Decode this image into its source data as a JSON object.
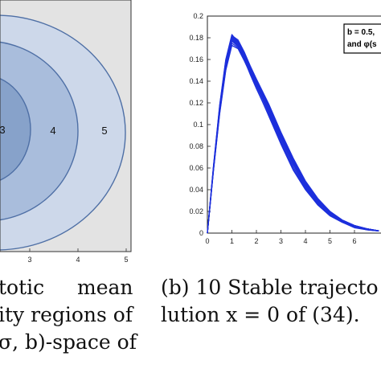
{
  "left_panel": {
    "x_ticks": [
      "3",
      "4",
      "5"
    ],
    "region_labels": [
      "3",
      "4",
      "5"
    ],
    "colors": {
      "background": "#e3e3e3",
      "region_5": "#cdd8ea",
      "region_4": "#a9bddc",
      "region_3": "#87a2ca",
      "edge": "#4e6fa5"
    }
  },
  "right_panel": {
    "x_ticks": [
      "0",
      "1",
      "2",
      "3",
      "4",
      "5",
      "6"
    ],
    "y_ticks": [
      "0",
      "0.02",
      "0.04",
      "0.06",
      "0.08",
      "0.1",
      "0.12",
      "0.14",
      "0.16",
      "0.18",
      "0.2"
    ],
    "legend_lines": [
      "b = 0.5,",
      "and φ(s"
    ],
    "line_color": "#1c2fdc"
  },
  "chart_data": [
    {
      "type": "area",
      "x_ticks": [
        3,
        4,
        5
      ],
      "regions": [
        "3",
        "4",
        "5"
      ]
    },
    {
      "type": "line",
      "xlim": [
        0,
        7
      ],
      "ylim": [
        0,
        0.2
      ],
      "x": [
        0,
        0.25,
        0.5,
        0.75,
        1.0,
        1.25,
        1.5,
        1.75,
        2.0,
        2.5,
        3.0,
        3.5,
        4.0,
        4.5,
        5.0,
        5.5,
        6.0,
        6.5,
        7.0
      ],
      "series": [
        {
          "values": [
            0,
            0.062,
            0.118,
            0.16,
            0.183,
            0.176,
            0.165,
            0.152,
            0.14,
            0.118,
            0.092,
            0.068,
            0.047,
            0.031,
            0.02,
            0.012,
            0.007,
            0.004,
            0.002
          ]
        },
        {
          "values": [
            0,
            0.06,
            0.114,
            0.155,
            0.179,
            0.174,
            0.162,
            0.15,
            0.137,
            0.113,
            0.088,
            0.064,
            0.044,
            0.029,
            0.018,
            0.011,
            0.006,
            0.004,
            0.002
          ]
        },
        {
          "values": [
            0,
            0.059,
            0.112,
            0.153,
            0.177,
            0.172,
            0.161,
            0.148,
            0.136,
            0.111,
            0.085,
            0.061,
            0.042,
            0.027,
            0.017,
            0.01,
            0.006,
            0.003,
            0.002
          ]
        },
        {
          "values": [
            0,
            0.061,
            0.116,
            0.158,
            0.181,
            0.177,
            0.166,
            0.153,
            0.141,
            0.117,
            0.09,
            0.066,
            0.046,
            0.03,
            0.019,
            0.012,
            0.007,
            0.004,
            0.002
          ]
        },
        {
          "values": [
            0,
            0.058,
            0.11,
            0.15,
            0.173,
            0.17,
            0.159,
            0.147,
            0.134,
            0.108,
            0.082,
            0.058,
            0.04,
            0.026,
            0.016,
            0.01,
            0.006,
            0.003,
            0.002
          ]
        },
        {
          "values": [
            0,
            0.06,
            0.115,
            0.156,
            0.18,
            0.175,
            0.164,
            0.151,
            0.139,
            0.115,
            0.089,
            0.065,
            0.045,
            0.03,
            0.019,
            0.011,
            0.007,
            0.004,
            0.002
          ]
        },
        {
          "values": [
            0,
            0.059,
            0.113,
            0.154,
            0.178,
            0.173,
            0.163,
            0.15,
            0.138,
            0.112,
            0.087,
            0.063,
            0.043,
            0.028,
            0.018,
            0.011,
            0.006,
            0.004,
            0.002
          ]
        },
        {
          "values": [
            0,
            0.061,
            0.117,
            0.159,
            0.182,
            0.178,
            0.167,
            0.154,
            0.142,
            0.119,
            0.093,
            0.069,
            0.048,
            0.032,
            0.02,
            0.012,
            0.007,
            0.004,
            0.002
          ]
        },
        {
          "values": [
            0,
            0.058,
            0.111,
            0.151,
            0.175,
            0.171,
            0.16,
            0.146,
            0.133,
            0.109,
            0.083,
            0.059,
            0.041,
            0.026,
            0.016,
            0.01,
            0.005,
            0.003,
            0.002
          ]
        },
        {
          "values": [
            0,
            0.06,
            0.114,
            0.157,
            0.18,
            0.176,
            0.165,
            0.152,
            0.139,
            0.116,
            0.091,
            0.067,
            0.047,
            0.031,
            0.019,
            0.012,
            0.007,
            0.004,
            0.002
          ]
        }
      ]
    }
  ],
  "captions": {
    "left": {
      "line1_a": "totic",
      "line1_b": "mean",
      "line2": "ity regions of",
      "line3": "σ, b)-space  of"
    },
    "right": {
      "line1": "(b) 10 Stable trajecto",
      "line2": "lution x = 0 of (34)."
    }
  }
}
